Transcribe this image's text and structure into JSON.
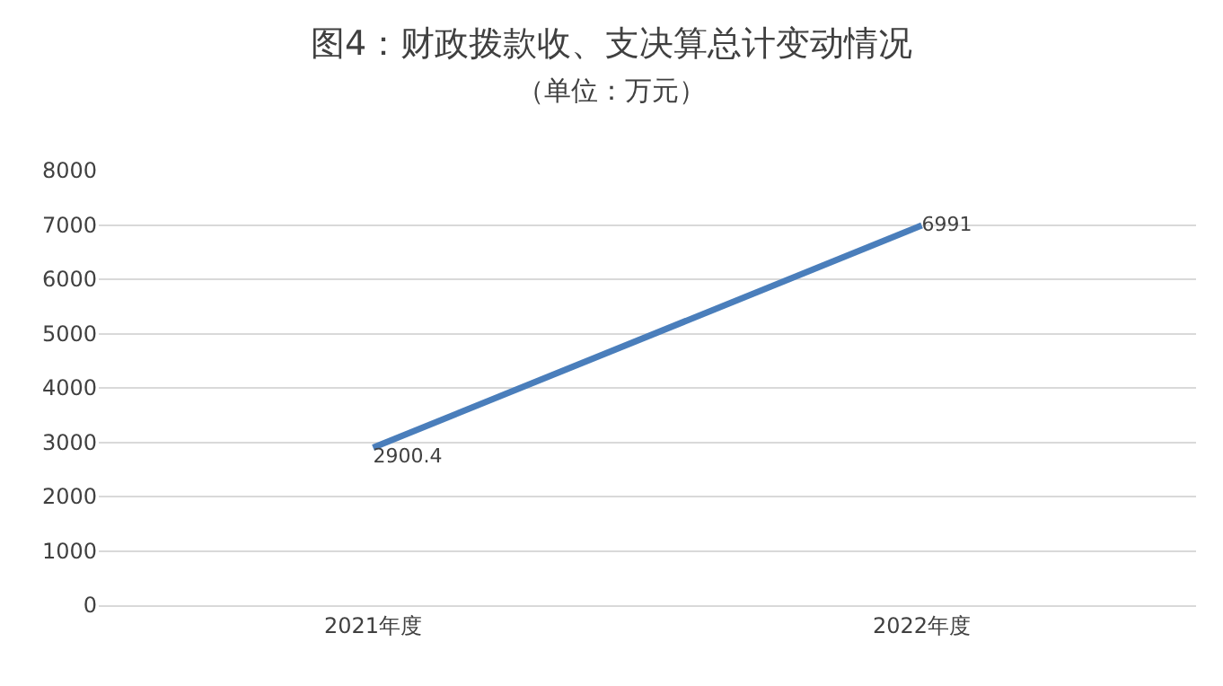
{
  "chart_data": {
    "type": "line",
    "title": "图4：财政拨款收、支决算总计变动情况",
    "subtitle": "（单位：万元）",
    "categories": [
      "2021年度",
      "2022年度"
    ],
    "series": [
      {
        "color": "#4a7ebb",
        "values": [
          2900.4,
          6991
        ]
      }
    ],
    "ylim": [
      0,
      8000
    ],
    "yticks": [
      0,
      1000,
      2000,
      3000,
      4000,
      5000,
      6000,
      7000,
      8000
    ],
    "grid": "y",
    "data_labels": true,
    "marker": "none",
    "line_style": "solid"
  }
}
